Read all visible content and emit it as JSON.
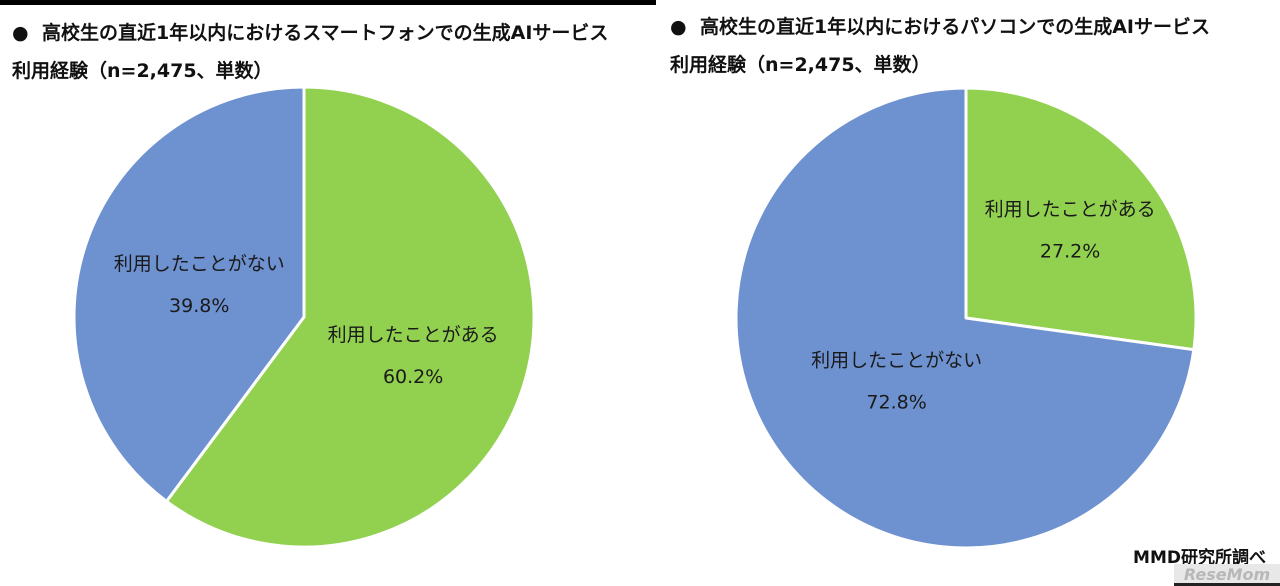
{
  "charts": [
    {
      "title_line1": "高校生の直近1年以内におけるスマートフォンでの生成AIサービス",
      "title_line2": "利用経験（n=2,475、単数）"
    },
    {
      "title_line1": "高校生の直近1年以内におけるパソコンでの生成AIサービス",
      "title_line2": "利用経験（n=2,475、単数）"
    }
  ],
  "bullet": "●",
  "credit": "MMD研究所調べ",
  "watermark": "ReseMom",
  "colors": {
    "used": "#92d050",
    "not_used": "#6e91d0",
    "edge": "#ffffff"
  },
  "chart_data": [
    {
      "type": "pie",
      "title": "高校生の直近1年以内におけるスマートフォンでの生成AIサービス利用経験（n=2,475、単数）",
      "slices": [
        {
          "label": "利用したことがある",
          "value": 60.2,
          "display": "60.2%",
          "color": "#92d050"
        },
        {
          "label": "利用したことがない",
          "value": 39.8,
          "display": "39.8%",
          "color": "#6e91d0"
        }
      ],
      "start_angle_deg": 0,
      "direction": "clockwise"
    },
    {
      "type": "pie",
      "title": "高校生の直近1年以内におけるパソコンでの生成AIサービス利用経験（n=2,475、単数）",
      "slices": [
        {
          "label": "利用したことがある",
          "value": 27.2,
          "display": "27.2%",
          "color": "#92d050"
        },
        {
          "label": "利用したことがない",
          "value": 72.8,
          "display": "72.8%",
          "color": "#6e91d0"
        }
      ],
      "start_angle_deg": 0,
      "direction": "clockwise"
    }
  ]
}
